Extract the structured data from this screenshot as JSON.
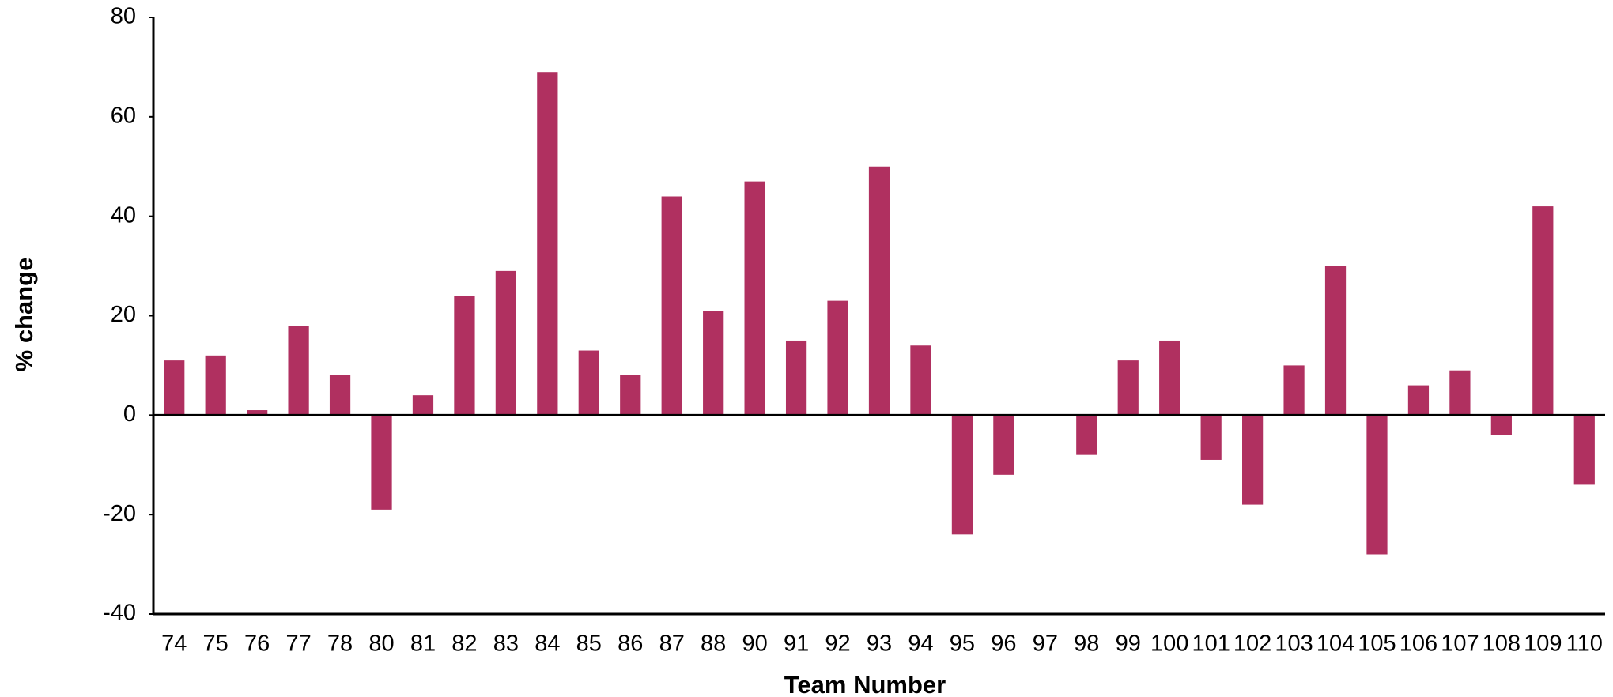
{
  "chart_data": {
    "type": "bar",
    "x_label": "Team Number",
    "y_label": "% change",
    "categories": [
      "74",
      "75",
      "76",
      "77",
      "78",
      "80",
      "81",
      "82",
      "83",
      "84",
      "85",
      "86",
      "87",
      "88",
      "90",
      "91",
      "92",
      "93",
      "94",
      "95",
      "96",
      "97",
      "98",
      "99",
      "100",
      "101",
      "102",
      "103",
      "104",
      "105",
      "106",
      "107",
      "108",
      "109",
      "110"
    ],
    "values": [
      11,
      12,
      1,
      18,
      8,
      -19,
      4,
      24,
      29,
      69,
      13,
      8,
      44,
      21,
      47,
      15,
      23,
      50,
      14,
      -24,
      -12,
      0,
      -8,
      11,
      15,
      -9,
      -18,
      10,
      30,
      -28,
      6,
      9,
      -4,
      42,
      -14
    ],
    "color": "#b03060",
    "ylim": [
      -40,
      80
    ],
    "yticks": [
      -40,
      -20,
      0,
      20,
      40,
      60,
      80
    ],
    "grid": false
  }
}
